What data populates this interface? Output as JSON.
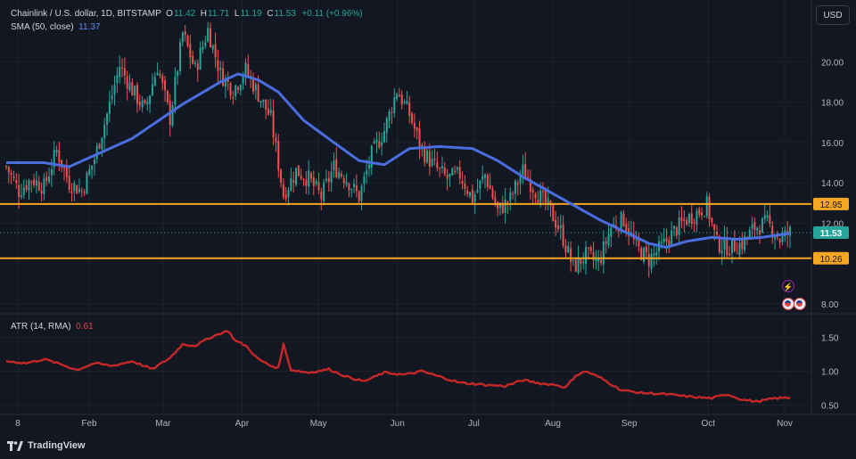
{
  "header": {
    "symbol": "Chainlink / U.S. dollar, 1D, BITSTAMP",
    "o_label": "O",
    "o_value": "11.42",
    "h_label": "H",
    "h_value": "11.71",
    "l_label": "L",
    "l_value": "11.19",
    "c_label": "C",
    "c_value": "11.53",
    "change": "+0.11 (+0.96%)"
  },
  "sma": {
    "label": "SMA (50, close)",
    "value": "11.37"
  },
  "atr": {
    "label": "ATR (14, RMA)",
    "value": "0.61"
  },
  "currency_button": "USD",
  "branding": "TradingView",
  "colors": {
    "up": "#26a69a",
    "down": "#ef5350",
    "sma": "#4a6ee0",
    "atr": "#c62828",
    "level_line": "#f5a623",
    "last_price": "#26a69a",
    "background": "#131722",
    "grid": "#1e222d"
  },
  "icons": [
    "bolt-icon",
    "us-flag-icon",
    "us-flag-icon"
  ],
  "chart_data": [
    {
      "type": "candlestick",
      "title": "Chainlink / U.S. dollar, 1D, BITSTAMP",
      "x_tick_labels": [
        "8",
        "Feb",
        "Mar",
        "Apr",
        "May",
        "Jun",
        "Jul",
        "Aug",
        "Sep",
        "Oct",
        "Nov"
      ],
      "y_tick_labels": [
        "8.00",
        "12.00",
        "14.00",
        "16.00",
        "18.00",
        "20.00"
      ],
      "ylim": [
        7.6,
        22.8
      ],
      "horizontal_levels": [
        "12.95",
        "10.26"
      ],
      "last_price": "11.53",
      "grid": true,
      "ohlc_anchors": [
        [
          0,
          14.8
        ],
        [
          5,
          13.6
        ],
        [
          10,
          14.2
        ],
        [
          15,
          13.8
        ],
        [
          20,
          15.6
        ],
        [
          25,
          14.0
        ],
        [
          30,
          13.6
        ],
        [
          35,
          15.2
        ],
        [
          40,
          17.4
        ],
        [
          45,
          19.8
        ],
        [
          50,
          18.6
        ],
        [
          55,
          17.6
        ],
        [
          60,
          19.8
        ],
        [
          65,
          17.2
        ],
        [
          70,
          21.4
        ],
        [
          75,
          19.6
        ],
        [
          80,
          21.6
        ],
        [
          85,
          19.4
        ],
        [
          90,
          18.6
        ],
        [
          95,
          19.6
        ],
        [
          100,
          18.4
        ],
        [
          105,
          17.2
        ],
        [
          110,
          13.4
        ],
        [
          115,
          14.6
        ],
        [
          120,
          14.2
        ],
        [
          125,
          13.3
        ],
        [
          130,
          14.8
        ],
        [
          135,
          14.2
        ],
        [
          140,
          13.3
        ],
        [
          145,
          15.4
        ],
        [
          150,
          16.6
        ],
        [
          155,
          18.6
        ],
        [
          160,
          17.4
        ],
        [
          165,
          15.6
        ],
        [
          170,
          14.8
        ],
        [
          175,
          14.2
        ],
        [
          180,
          14.4
        ],
        [
          185,
          13.2
        ],
        [
          190,
          14.4
        ],
        [
          195,
          12.6
        ],
        [
          200,
          13.2
        ],
        [
          205,
          14.6
        ],
        [
          210,
          13.6
        ],
        [
          215,
          12.8
        ],
        [
          220,
          11.6
        ],
        [
          225,
          9.8
        ],
        [
          230,
          10.4
        ],
        [
          235,
          10.0
        ],
        [
          240,
          11.8
        ],
        [
          245,
          12.2
        ],
        [
          250,
          10.8
        ],
        [
          255,
          10.2
        ],
        [
          260,
          10.8
        ],
        [
          265,
          11.6
        ],
        [
          270,
          12.2
        ],
        [
          275,
          12.6
        ],
        [
          278,
          12.9
        ],
        [
          282,
          11.0
        ],
        [
          287,
          10.8
        ],
        [
          292,
          11.0
        ],
        [
          297,
          11.8
        ],
        [
          302,
          12.0
        ],
        [
          307,
          11.2
        ],
        [
          311,
          11.53
        ]
      ],
      "sma_anchors": [
        [
          0,
          15.0
        ],
        [
          15,
          15.0
        ],
        [
          25,
          14.8
        ],
        [
          50,
          16.2
        ],
        [
          70,
          17.9
        ],
        [
          85,
          19.0
        ],
        [
          92,
          19.4
        ],
        [
          100,
          19.1
        ],
        [
          108,
          18.5
        ],
        [
          118,
          17.1
        ],
        [
          130,
          16.0
        ],
        [
          140,
          15.1
        ],
        [
          150,
          14.9
        ],
        [
          160,
          15.7
        ],
        [
          172,
          15.8
        ],
        [
          185,
          15.7
        ],
        [
          195,
          15.1
        ],
        [
          205,
          14.3
        ],
        [
          215,
          13.6
        ],
        [
          225,
          12.9
        ],
        [
          235,
          12.2
        ],
        [
          245,
          11.6
        ],
        [
          255,
          11.0
        ],
        [
          262,
          10.8
        ],
        [
          270,
          11.1
        ],
        [
          280,
          11.3
        ],
        [
          290,
          11.2
        ],
        [
          300,
          11.3
        ],
        [
          311,
          11.5
        ]
      ],
      "candle_count": 312
    },
    {
      "type": "line",
      "title": "ATR (14, RMA)",
      "y_tick_labels": [
        "0.50",
        "1.00",
        "1.50"
      ],
      "ylim": [
        0.4,
        1.8
      ],
      "grid": true,
      "series": [
        {
          "name": "ATR (14, RMA)",
          "anchors": [
            [
              0,
              1.15
            ],
            [
              8,
              1.12
            ],
            [
              15,
              1.18
            ],
            [
              22,
              1.1
            ],
            [
              28,
              1.02
            ],
            [
              35,
              1.12
            ],
            [
              42,
              1.08
            ],
            [
              50,
              1.15
            ],
            [
              58,
              1.03
            ],
            [
              65,
              1.2
            ],
            [
              70,
              1.4
            ],
            [
              75,
              1.38
            ],
            [
              82,
              1.52
            ],
            [
              88,
              1.6
            ],
            [
              91,
              1.45
            ],
            [
              95,
              1.38
            ],
            [
              100,
              1.18
            ],
            [
              105,
              1.08
            ],
            [
              108,
              1.05
            ],
            [
              110,
              1.4
            ],
            [
              113,
              1.02
            ],
            [
              120,
              0.98
            ],
            [
              128,
              1.03
            ],
            [
              135,
              0.92
            ],
            [
              142,
              0.85
            ],
            [
              150,
              0.98
            ],
            [
              158,
              0.95
            ],
            [
              165,
              1.0
            ],
            [
              172,
              0.92
            ],
            [
              180,
              0.83
            ],
            [
              190,
              0.8
            ],
            [
              198,
              0.78
            ],
            [
              205,
              0.87
            ],
            [
              212,
              0.82
            ],
            [
              218,
              0.8
            ],
            [
              222,
              0.76
            ],
            [
              226,
              0.94
            ],
            [
              230,
              1.0
            ],
            [
              236,
              0.9
            ],
            [
              244,
              0.72
            ],
            [
              252,
              0.68
            ],
            [
              262,
              0.66
            ],
            [
              272,
              0.62
            ],
            [
              280,
              0.6
            ],
            [
              286,
              0.66
            ],
            [
              292,
              0.58
            ],
            [
              298,
              0.55
            ],
            [
              305,
              0.6
            ],
            [
              311,
              0.61
            ]
          ]
        }
      ]
    }
  ]
}
